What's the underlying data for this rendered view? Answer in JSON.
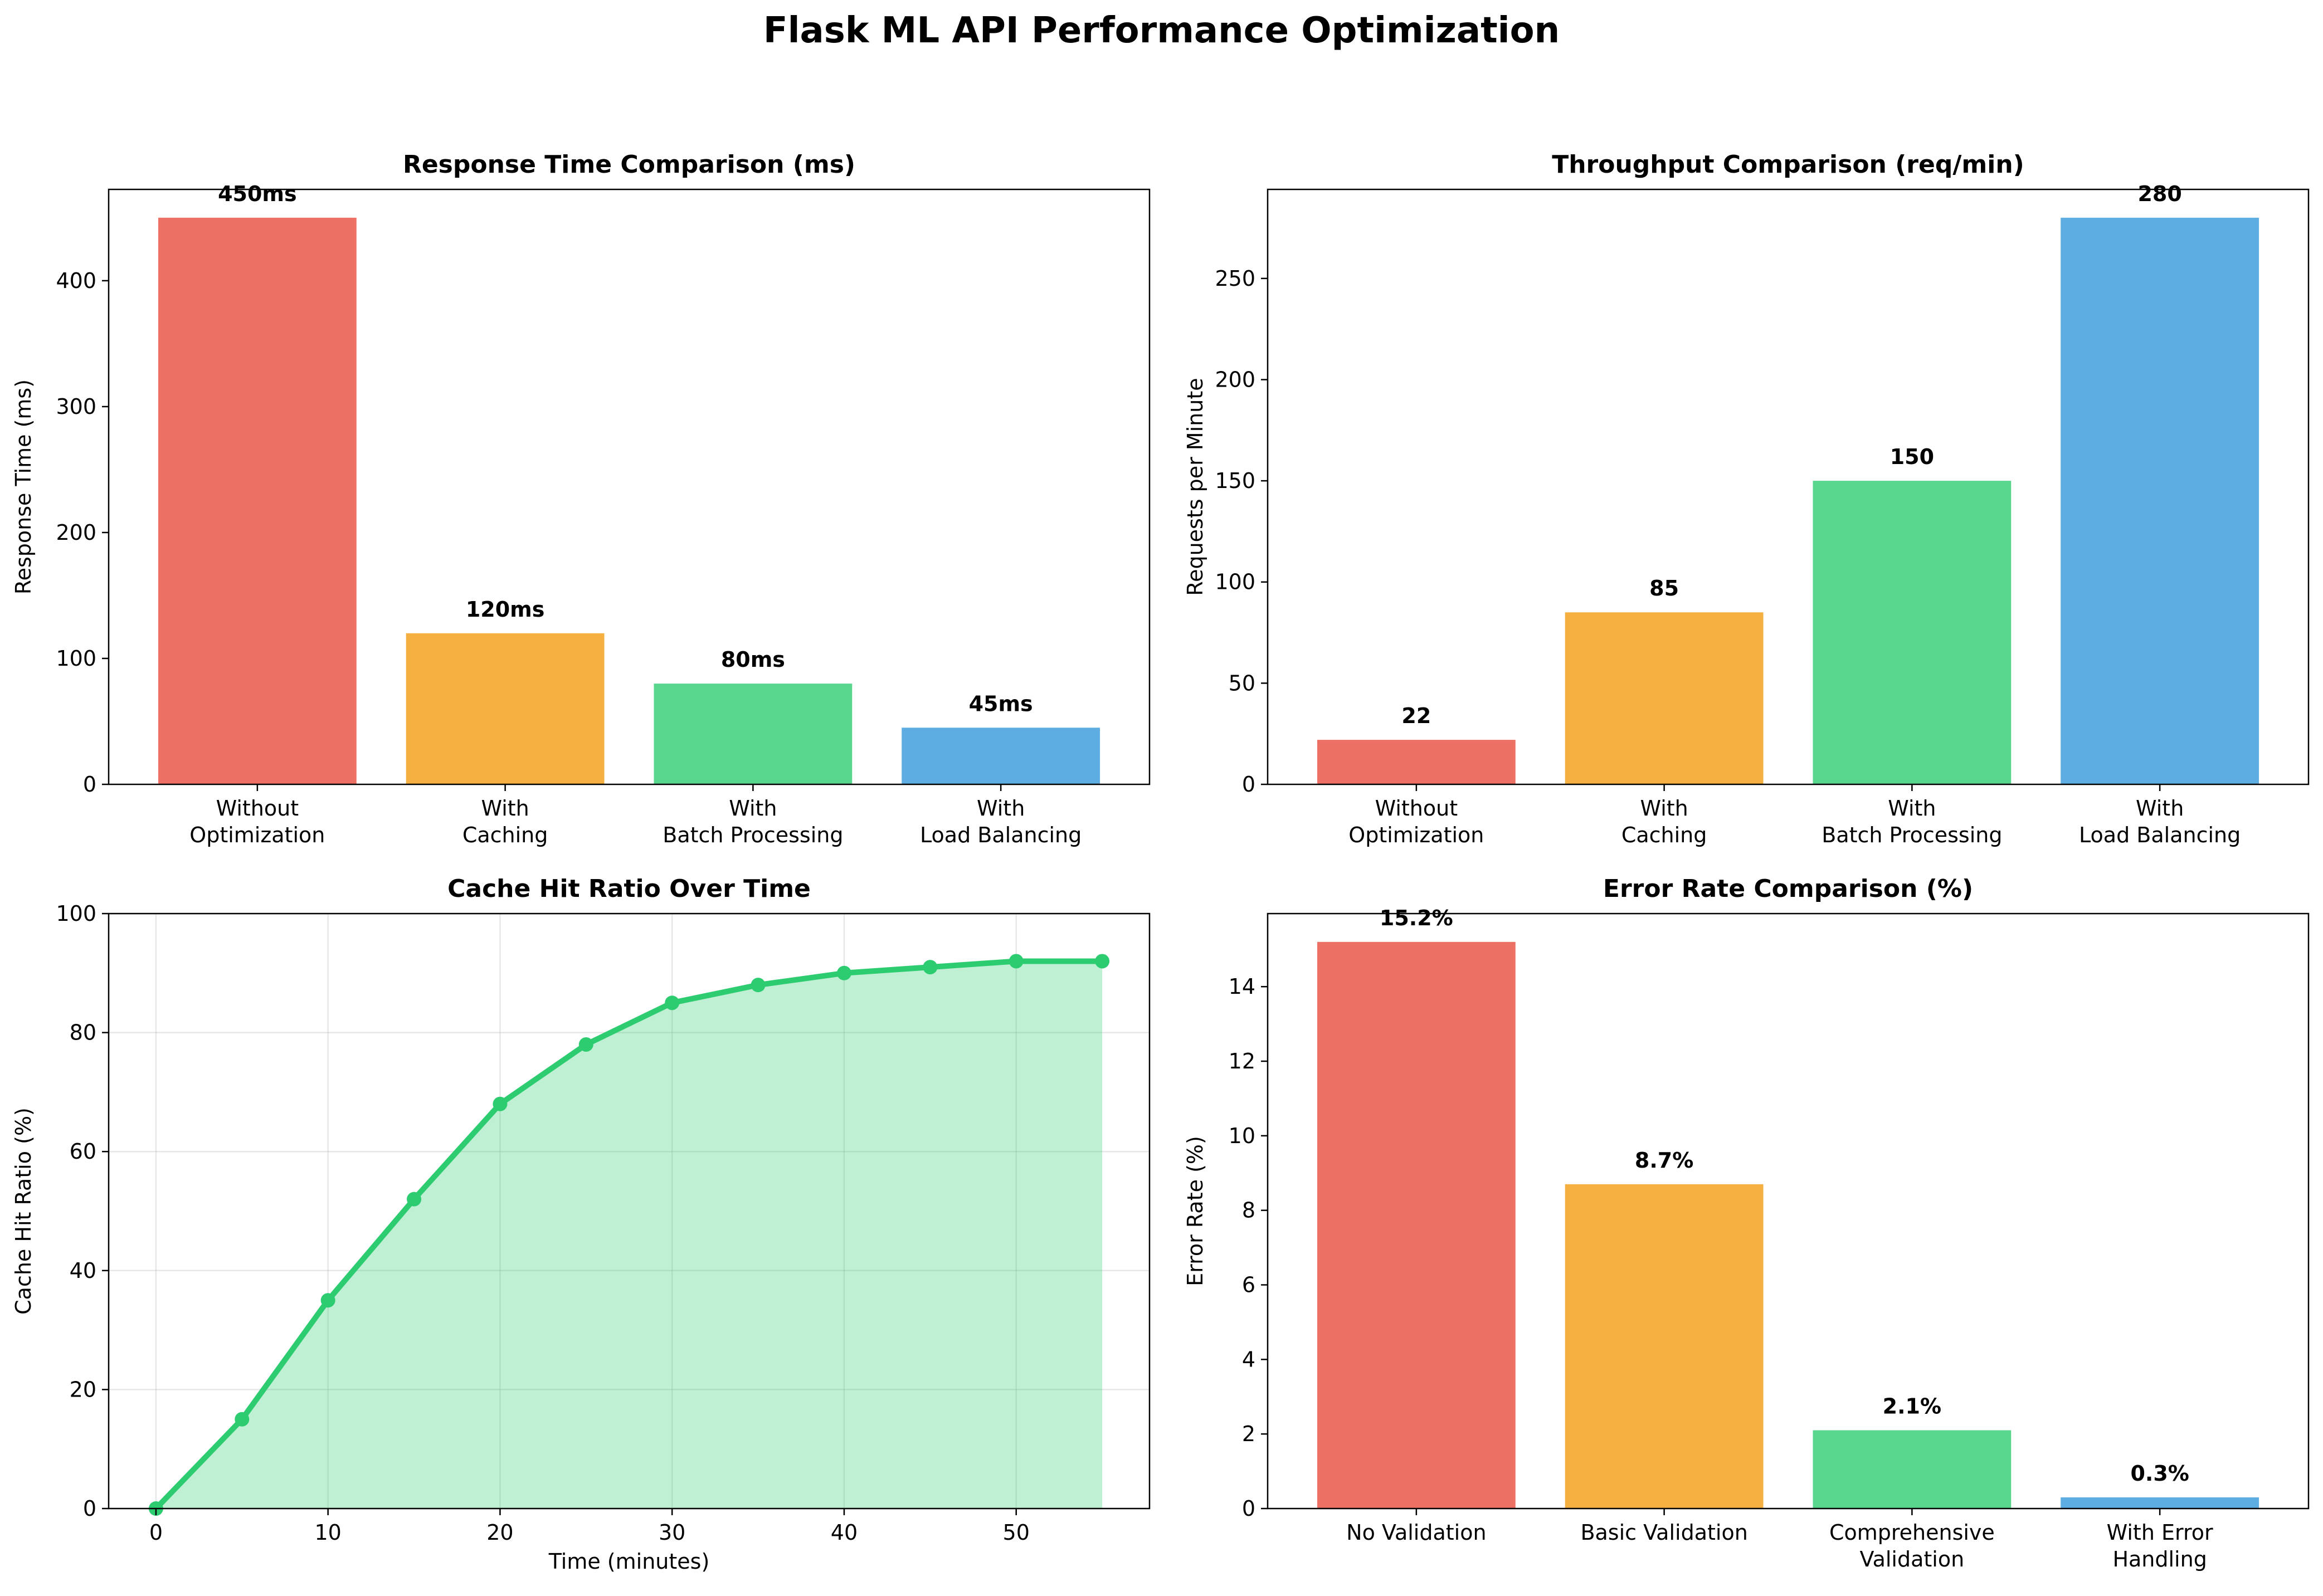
{
  "figure": {
    "title": "Flask ML API Performance Optimization"
  },
  "colors": {
    "red": "#E74C3C",
    "orange": "#F39C12",
    "green": "#2ECC71",
    "blue": "#3498DB"
  },
  "chart_data": [
    {
      "id": "response",
      "type": "bar",
      "title": "Response Time Comparison (ms)",
      "xlabel": "",
      "ylabel": "Response Time (ms)",
      "categories": [
        "Without\nOptimization",
        "With\nCaching",
        "With\nBatch Processing",
        "With\nLoad Balancing"
      ],
      "values": [
        450,
        120,
        80,
        45
      ],
      "value_labels": [
        "450ms",
        "120ms",
        "80ms",
        "45ms"
      ],
      "ylim": [
        0,
        472.5
      ],
      "yticks": [
        0,
        100,
        200,
        300,
        400
      ],
      "grid": false
    },
    {
      "id": "throughput",
      "type": "bar",
      "title": "Throughput Comparison (req/min)",
      "xlabel": "",
      "ylabel": "Requests per Minute",
      "categories": [
        "Without\nOptimization",
        "With\nCaching",
        "With\nBatch Processing",
        "With\nLoad Balancing"
      ],
      "values": [
        22,
        85,
        150,
        280
      ],
      "value_labels": [
        "22",
        "85",
        "150",
        "280"
      ],
      "ylim": [
        0,
        294
      ],
      "yticks": [
        0,
        50,
        100,
        150,
        200,
        250
      ],
      "grid": false
    },
    {
      "id": "cache",
      "type": "area",
      "title": "Cache Hit Ratio Over Time",
      "xlabel": "Time (minutes)",
      "ylabel": "Cache Hit Ratio (%)",
      "x": [
        0,
        5,
        10,
        15,
        20,
        25,
        30,
        35,
        40,
        45,
        50,
        55
      ],
      "y": [
        0,
        15,
        35,
        52,
        68,
        78,
        85,
        88,
        90,
        91,
        92,
        92
      ],
      "xlim": [
        -2.75,
        57.75
      ],
      "ylim": [
        0,
        100
      ],
      "xticks": [
        0,
        10,
        20,
        30,
        40,
        50
      ],
      "yticks": [
        0,
        20,
        40,
        60,
        80,
        100
      ],
      "grid": true
    },
    {
      "id": "error",
      "type": "bar",
      "title": "Error Rate Comparison (%)",
      "xlabel": "",
      "ylabel": "Error Rate (%)",
      "categories": [
        "No Validation",
        "Basic Validation",
        "Comprehensive\nValidation",
        "With Error\nHandling"
      ],
      "values": [
        15.2,
        8.7,
        2.1,
        0.3
      ],
      "value_labels": [
        "15.2%",
        "8.7%",
        "2.1%",
        "0.3%"
      ],
      "ylim": [
        0,
        15.96
      ],
      "yticks": [
        0,
        2,
        4,
        6,
        8,
        10,
        12,
        14
      ],
      "grid": false
    }
  ]
}
